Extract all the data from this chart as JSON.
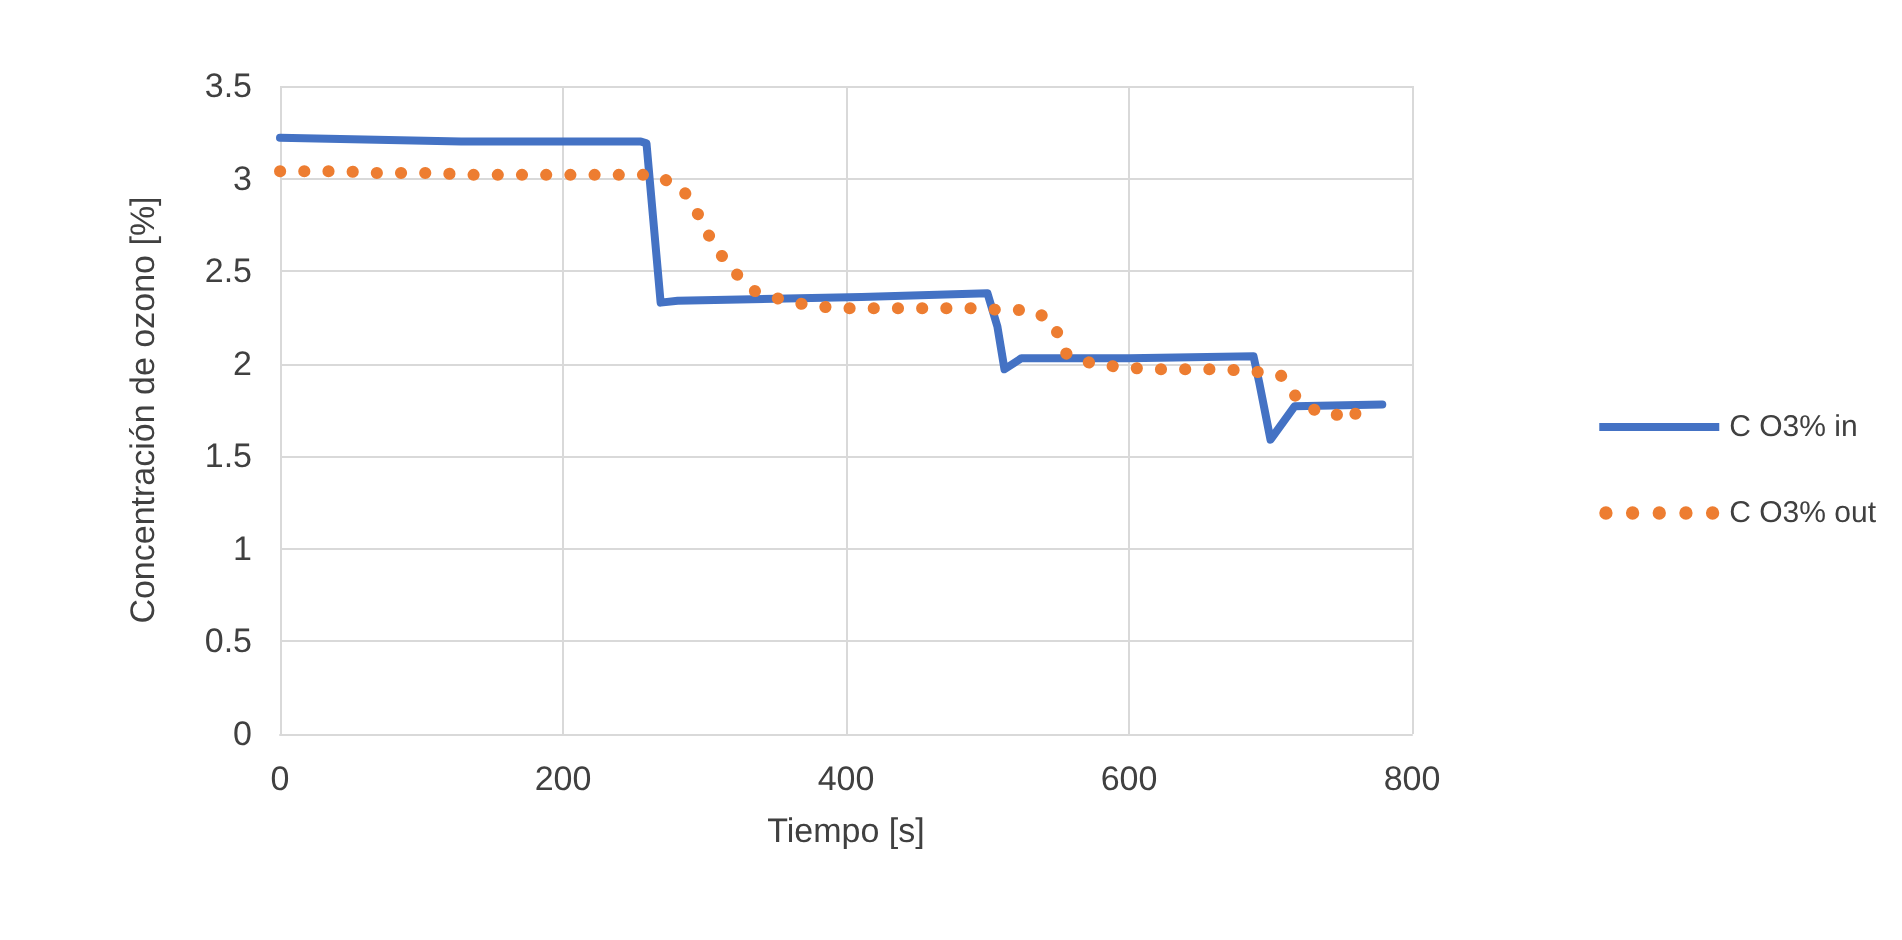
{
  "chart_data": {
    "type": "line",
    "xlabel": "Tiempo [s]",
    "ylabel": "Concentración de ozono [%]",
    "xlim": [
      0,
      800
    ],
    "xticks": [
      0,
      200,
      400,
      600,
      800
    ],
    "ylim": [
      0,
      3.5
    ],
    "yticks": [
      0,
      0.5,
      1,
      1.5,
      2,
      2.5,
      3,
      3.5
    ],
    "grid": true,
    "legend": "right",
    "marker": "none",
    "series": [
      {
        "name": "C O3% in",
        "color": "#4472c4",
        "line_style": "solid",
        "x": [
          0,
          128,
          255,
          259,
          269,
          281,
          411,
          500,
          507,
          512,
          524,
          600,
          688,
          692,
          700,
          717,
          779
        ],
        "values": [
          3.22,
          3.2,
          3.2,
          3.19,
          2.33,
          2.34,
          2.36,
          2.38,
          2.2,
          1.97,
          2.03,
          2.03,
          2.04,
          1.9,
          1.59,
          1.77,
          1.78
        ]
      },
      {
        "name": "C O3% out",
        "color": "#ed7d31",
        "line_style": "dotted",
        "x": [
          0,
          21,
          44,
          65,
          87,
          110,
          132,
          154,
          176,
          199,
          221,
          243,
          265,
          284,
          296,
          306,
          319,
          336,
          357,
          378,
          399,
          421,
          443,
          465,
          488,
          510,
          532,
          547,
          554,
          574,
          596,
          619,
          641,
          664,
          686,
          707,
          720,
          738,
          760
        ],
        "values": [
          3.04,
          3.04,
          3.04,
          3.03,
          3.03,
          3.03,
          3.02,
          3.02,
          3.02,
          3.02,
          3.02,
          3.02,
          3.02,
          2.95,
          2.8,
          2.65,
          2.51,
          2.39,
          2.34,
          2.31,
          2.3,
          2.3,
          2.3,
          2.3,
          2.3,
          2.29,
          2.29,
          2.22,
          2.06,
          2.0,
          1.98,
          1.97,
          1.97,
          1.97,
          1.96,
          1.94,
          1.8,
          1.72,
          1.73
        ]
      }
    ]
  }
}
